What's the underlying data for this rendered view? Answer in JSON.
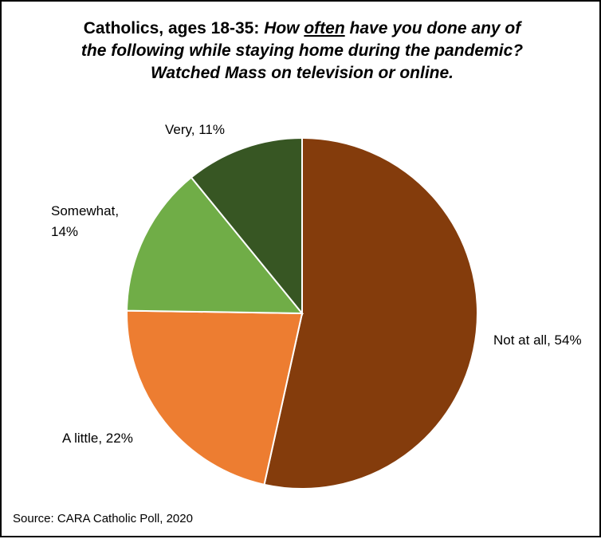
{
  "title": {
    "lead": "Catholics, ages 18-35: ",
    "q_part1": "How ",
    "q_underlined": "often",
    "q_part2": " have you done any of",
    "line2": "the following while staying home during the pandemic?",
    "line3": "Watched Mass on television or online."
  },
  "source": "Source: CARA Catholic Poll, 2020",
  "chart_data": {
    "type": "pie",
    "start": "12 o'clock",
    "direction": "clockwise",
    "slices": [
      {
        "label": "Not at all",
        "value": 54,
        "value_text": "54%",
        "color": "#843C0C"
      },
      {
        "label": "A little",
        "value": 22,
        "value_text": "22%",
        "color": "#ED7D31"
      },
      {
        "label": "Somewhat",
        "value": 14,
        "value_text": "14%",
        "color": "#70AD47"
      },
      {
        "label": "Very",
        "value": 11,
        "value_text": "11%",
        "color": "#375623"
      }
    ],
    "data_labels": [
      "Not at all, 54%",
      "A little, 22%",
      [
        "Somewhat,",
        "14%"
      ],
      "Very, 11%"
    ]
  }
}
